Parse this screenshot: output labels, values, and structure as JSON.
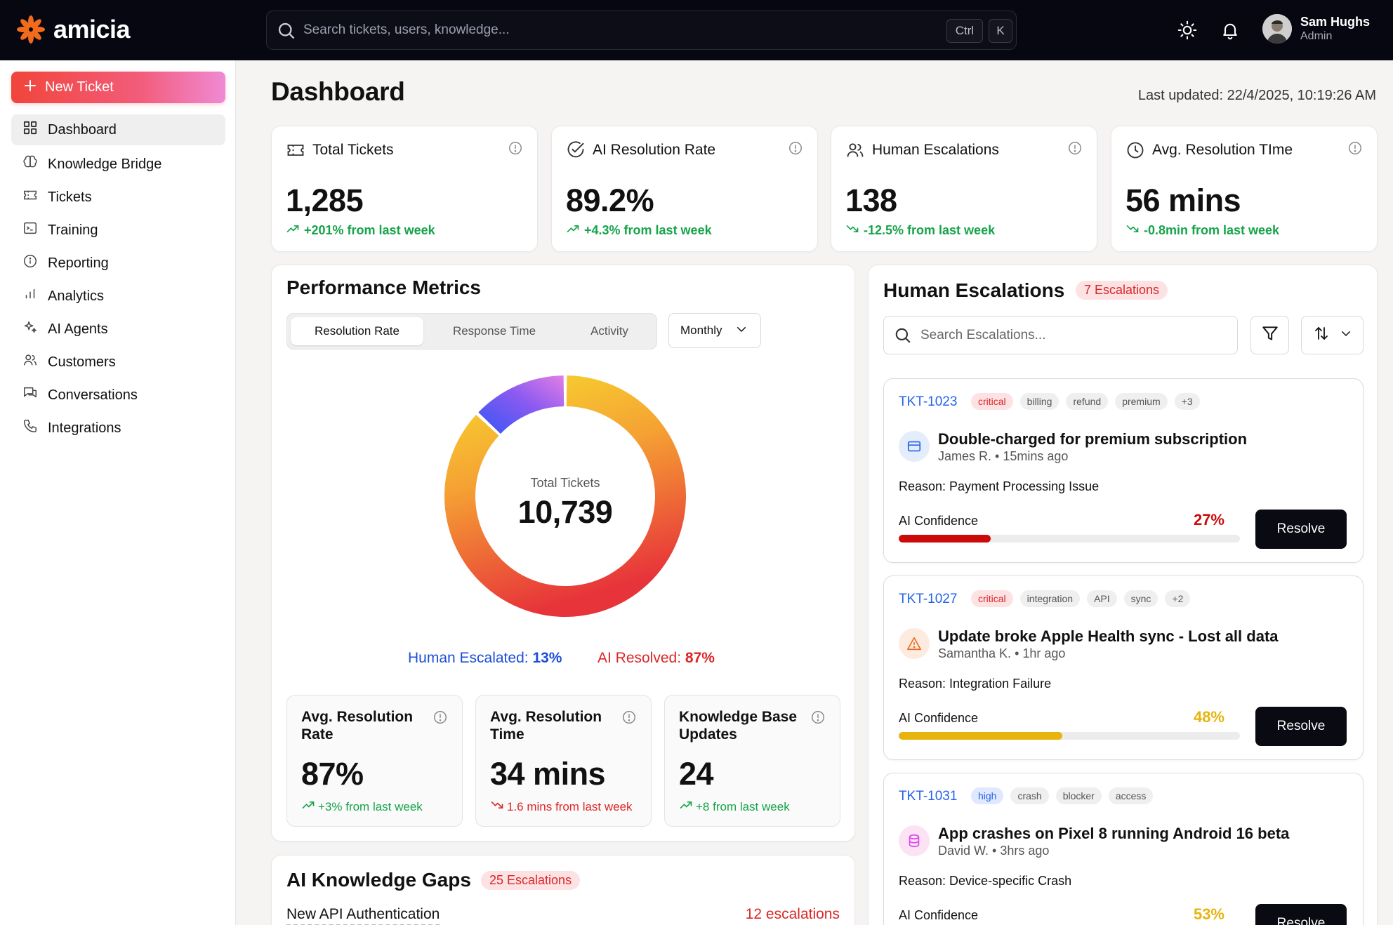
{
  "app": {
    "brand": "amicia"
  },
  "header": {
    "search_placeholder": "Search tickets, users, knowledge...",
    "shortcut_ctrl": "Ctrl",
    "shortcut_key": "K",
    "user": {
      "name": "Sam Hughs",
      "role": "Admin"
    }
  },
  "sidebar": {
    "new_ticket_label": "New Ticket",
    "items": [
      {
        "label": "Dashboard",
        "icon": "grid-icon",
        "active": true
      },
      {
        "label": "Knowledge Bridge",
        "icon": "brain-icon"
      },
      {
        "label": "Tickets",
        "icon": "ticket-icon"
      },
      {
        "label": "Training",
        "icon": "terminal-icon"
      },
      {
        "label": "Reporting",
        "icon": "info-circle-icon"
      },
      {
        "label": "Analytics",
        "icon": "bar-chart-icon"
      },
      {
        "label": "AI Agents",
        "icon": "sparkles-icon"
      },
      {
        "label": "Customers",
        "icon": "users-icon"
      },
      {
        "label": "Conversations",
        "icon": "chat-icon"
      },
      {
        "label": "Integrations",
        "icon": "phone-icon"
      }
    ]
  },
  "page": {
    "title": "Dashboard",
    "last_updated": "Last updated: 22/4/2025, 10:19:26 AM"
  },
  "stats": [
    {
      "title": "Total Tickets",
      "value": "1,285",
      "delta": "+201% from last week",
      "trend": "up",
      "icon": "ticket-icon"
    },
    {
      "title": "AI Resolution Rate",
      "value": "89.2%",
      "delta": "+4.3% from last week",
      "trend": "up",
      "icon": "check-circle-icon"
    },
    {
      "title": "Human Escalations",
      "value": "138",
      "delta": "-12.5% from last week",
      "trend": "down",
      "icon": "users-icon"
    },
    {
      "title": "Avg. Resolution TIme",
      "value": "56 mins",
      "delta": "-0.8min from last week",
      "trend": "down",
      "icon": "clock-icon"
    }
  ],
  "performance": {
    "title": "Performance Metrics",
    "tabs": [
      "Resolution Rate",
      "Response Time",
      "Activity"
    ],
    "active_tab": 0,
    "period": "Monthly",
    "donut_label": "Total Tickets",
    "donut_value": "10,739",
    "legend_human_label": "Human Escalated:",
    "legend_human_value": "13%",
    "legend_ai_label": "AI Resolved:",
    "legend_ai_value": "87%",
    "metrics": [
      {
        "title": "Avg. Resolution Rate",
        "value": "87%",
        "delta": "+3% from last week",
        "trend": "up"
      },
      {
        "title": "Avg. Resolution Time",
        "value": "34 mins",
        "delta": "1.6 mins from last week",
        "trend": "down"
      },
      {
        "title": "Knowledge Base Updates",
        "value": "24",
        "delta": "+8 from last week",
        "trend": "up"
      }
    ]
  },
  "chart_data": {
    "type": "pie",
    "categories": [
      "Human Escalated",
      "AI Resolved"
    ],
    "values": [
      13,
      87
    ],
    "title": "",
    "center_label": "Total Tickets",
    "center_value": "10,739",
    "colors": {
      "Human Escalated": "#1d4ed8",
      "AI Resolved": "#dc2626"
    }
  },
  "knowledge_gaps": {
    "title": "AI Knowledge Gaps",
    "badge": "25 Escalations",
    "rows": [
      {
        "title": "New API Authentication",
        "count": "12 escalations"
      }
    ]
  },
  "escalations": {
    "title": "Human Escalations",
    "badge": "7 Escalations",
    "search_placeholder": "Search Escalations...",
    "confidence_label": "AI Confidence",
    "resolve_label": "Resolve",
    "tickets": [
      {
        "id": "TKT-1023",
        "tags": [
          {
            "text": "critical",
            "kind": "critical"
          },
          {
            "text": "billing"
          },
          {
            "text": "refund"
          },
          {
            "text": "premium"
          },
          {
            "text": "+3"
          }
        ],
        "title": "Double-charged for premium subscription",
        "meta": "James R.  •  15mins ago",
        "reason": "Reason: Payment Processing Issue",
        "confidence": "27%",
        "confidence_value": 27,
        "color": "#cc0a0a",
        "icon": "credit-card-icon"
      },
      {
        "id": "TKT-1027",
        "tags": [
          {
            "text": "critical",
            "kind": "critical"
          },
          {
            "text": "integration"
          },
          {
            "text": "API"
          },
          {
            "text": "sync"
          },
          {
            "text": "+2"
          }
        ],
        "title": "Update broke Apple Health sync - Lost all data",
        "meta": "Samantha K.  •  1hr ago",
        "reason": "Reason: Integration Failure",
        "confidence": "48%",
        "confidence_value": 48,
        "color": "#e6b40c",
        "icon": "warning-icon"
      },
      {
        "id": "TKT-1031",
        "tags": [
          {
            "text": "high",
            "kind": "high"
          },
          {
            "text": "crash"
          },
          {
            "text": "blocker"
          },
          {
            "text": "access"
          }
        ],
        "title": "App crashes on Pixel 8 running Android 16 beta",
        "meta": "David W.  •  3hrs ago",
        "reason": "Reason: Device-specific Crash",
        "confidence": "53%",
        "confidence_value": 53,
        "color": "#e6b40c",
        "icon": "database-icon"
      }
    ]
  }
}
